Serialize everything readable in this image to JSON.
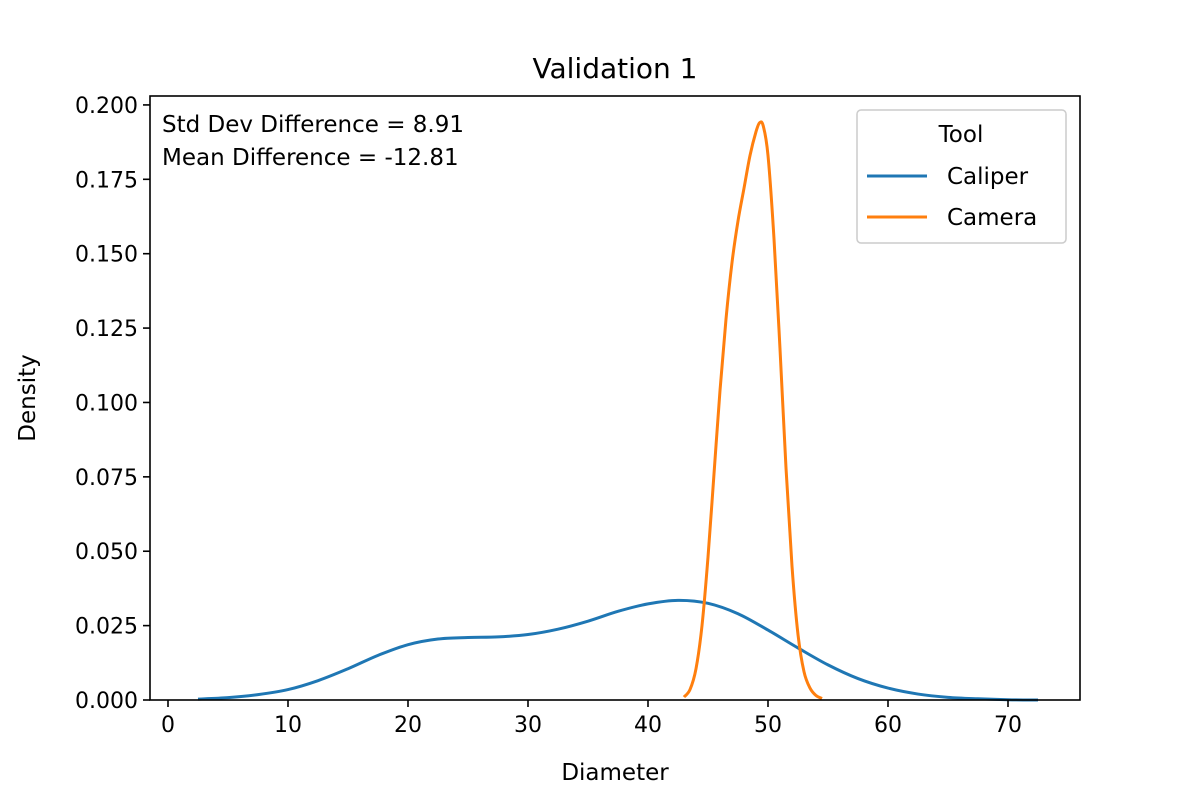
{
  "chart_data": {
    "type": "line",
    "title": "Validation 1",
    "xlabel": "Diameter",
    "ylabel": "Density",
    "xlim": [
      -1.5,
      76
    ],
    "ylim": [
      0,
      0.203
    ],
    "xticks": [
      0,
      10,
      20,
      30,
      40,
      50,
      60,
      70
    ],
    "xtick_labels": [
      "0",
      "10",
      "20",
      "30",
      "40",
      "50",
      "60",
      "70"
    ],
    "yticks": [
      0,
      0.025,
      0.05,
      0.075,
      0.1,
      0.125,
      0.15,
      0.175,
      0.2
    ],
    "ytick_labels": [
      "0.000",
      "0.025",
      "0.050",
      "0.075",
      "0.100",
      "0.125",
      "0.150",
      "0.175",
      "0.200"
    ],
    "grid": false,
    "annotations": [
      "Std Dev Difference = 8.91",
      "Mean Difference = -12.81"
    ],
    "legend": {
      "title": "Tool",
      "placement": "upper-right"
    },
    "series": [
      {
        "name": "Caliper",
        "color": "#1f77b4",
        "x": [
          2.5,
          5,
          7.5,
          10,
          12.5,
          15,
          17.5,
          20,
          22.5,
          25,
          27.5,
          30,
          32.5,
          35,
          37.5,
          40,
          42.5,
          45,
          47.5,
          50,
          52.5,
          55,
          57.5,
          60,
          62.5,
          65,
          67.5,
          70,
          72.5
        ],
        "y": [
          0.0003,
          0.0008,
          0.0018,
          0.0035,
          0.0065,
          0.0105,
          0.015,
          0.0186,
          0.0205,
          0.021,
          0.0212,
          0.022,
          0.0238,
          0.0265,
          0.0298,
          0.0323,
          0.0335,
          0.0325,
          0.029,
          0.0235,
          0.0175,
          0.0118,
          0.0072,
          0.004,
          0.002,
          0.0009,
          0.0004,
          0.0001,
          0.0
        ]
      },
      {
        "name": "Camera",
        "color": "#ff7f0e",
        "x": [
          43,
          43.5,
          44,
          44.5,
          45,
          45.5,
          46,
          46.5,
          47,
          47.5,
          48,
          48.5,
          49,
          49.3,
          49.6,
          50,
          50.5,
          51,
          51.5,
          52,
          52.5,
          53,
          53.5,
          54,
          54.5
        ],
        "y": [
          0.001,
          0.0035,
          0.0105,
          0.025,
          0.048,
          0.076,
          0.104,
          0.128,
          0.147,
          0.161,
          0.172,
          0.183,
          0.191,
          0.194,
          0.193,
          0.183,
          0.155,
          0.118,
          0.078,
          0.045,
          0.022,
          0.0095,
          0.004,
          0.0015,
          0.0005
        ]
      }
    ]
  }
}
